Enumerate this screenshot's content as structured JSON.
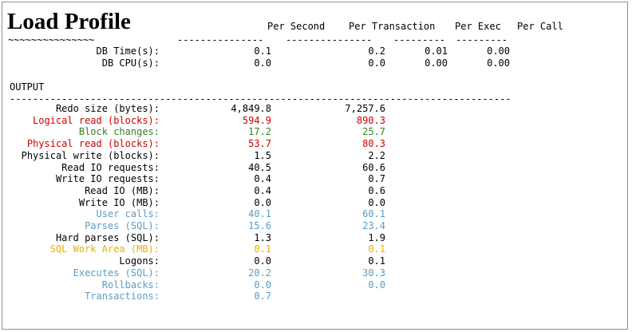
{
  "title": "Load Profile",
  "headers": {
    "per_second": "Per Second",
    "per_transaction": "Per Transaction",
    "per_exec": "Per Exec",
    "per_call": "Per Call"
  },
  "tilde_line": "~~~~~~~~~~~~~~~",
  "summary_rows": [
    {
      "label": "DB Time(s):",
      "per_second": "0.1",
      "per_transaction": "0.2",
      "per_exec": "0.01",
      "per_call": "0.00"
    },
    {
      "label": "DB CPU(s):",
      "per_second": "0.0",
      "per_transaction": "0.0",
      "per_exec": "0.00",
      "per_call": "0.00"
    }
  ],
  "section_label": "OUTPUT",
  "colors": {
    "black": "#000000",
    "red": "#cc0000",
    "green": "#3a7d1e",
    "blue": "#5b9bc4",
    "yellow": "#e8b000"
  },
  "output_rows": [
    {
      "label": "Redo size (bytes):",
      "per_second": "4,849.8",
      "per_transaction": "7,257.6",
      "color": "black"
    },
    {
      "label": "Logical read (blocks):",
      "per_second": "594.9",
      "per_transaction": "890.3",
      "color": "red"
    },
    {
      "label": "Block changes:",
      "per_second": "17.2",
      "per_transaction": "25.7",
      "color": "green"
    },
    {
      "label": "Physical read (blocks):",
      "per_second": "53.7",
      "per_transaction": "80.3",
      "color": "red"
    },
    {
      "label": "Physical write (blocks):",
      "per_second": "1.5",
      "per_transaction": "2.2",
      "color": "black"
    },
    {
      "label": "Read IO requests:",
      "per_second": "40.5",
      "per_transaction": "60.6",
      "color": "black"
    },
    {
      "label": "Write IO requests:",
      "per_second": "0.4",
      "per_transaction": "0.7",
      "color": "black"
    },
    {
      "label": "Read IO (MB):",
      "per_second": "0.4",
      "per_transaction": "0.6",
      "color": "black"
    },
    {
      "label": "Write IO (MB):",
      "per_second": "0.0",
      "per_transaction": "0.0",
      "color": "black"
    },
    {
      "label": "User calls:",
      "per_second": "40.1",
      "per_transaction": "60.1",
      "color": "blue"
    },
    {
      "label": "Parses (SQL):",
      "per_second": "15.6",
      "per_transaction": "23.4",
      "color": "blue"
    },
    {
      "label": "Hard parses (SQL):",
      "per_second": "1.3",
      "per_transaction": "1.9",
      "color": "black"
    },
    {
      "label": "SQL Work Area (MB):",
      "per_second": "0.1",
      "per_transaction": "0.1",
      "color": "yellow"
    },
    {
      "label": "Logons:",
      "per_second": "0.0",
      "per_transaction": "0.1",
      "color": "black"
    },
    {
      "label": "Executes (SQL):",
      "per_second": "20.2",
      "per_transaction": "30.3",
      "color": "blue"
    },
    {
      "label": "Rollbacks:",
      "per_second": "0.0",
      "per_transaction": "0.0",
      "color": "blue"
    },
    {
      "label": "Transactions:",
      "per_second": "0.7",
      "per_transaction": "",
      "color": "blue"
    }
  ]
}
